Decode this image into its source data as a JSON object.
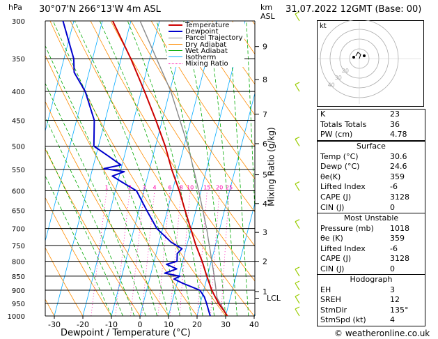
{
  "header": {
    "hpa_unit": "hPa",
    "location": "30°07'N  266°13'W  4m  ASL",
    "km_unit": "km",
    "asl_unit": "ASL",
    "datetime": "31.07.2022  12GMT  (Base: 00)"
  },
  "chart_data": {
    "type": "skew-t log-p",
    "xlabel": "Dewpoint / Temperature (°C)",
    "ylabel_left": "hPa",
    "ylabel_right": "Mixing Ratio (g/kg)",
    "pressure_levels": [
      300,
      350,
      400,
      450,
      500,
      550,
      600,
      650,
      700,
      750,
      800,
      850,
      900,
      950,
      1000
    ],
    "temperature_ticks": [
      -30,
      -20,
      -10,
      0,
      10,
      20,
      30,
      40
    ],
    "altitude_km": [
      {
        "label": "1",
        "p": 905
      },
      {
        "label": "2",
        "p": 800
      },
      {
        "label": "3",
        "p": 711
      },
      {
        "label": "4",
        "p": 632
      },
      {
        "label": "5",
        "p": 562
      },
      {
        "label": "6",
        "p": 495
      },
      {
        "label": "7",
        "p": 439
      },
      {
        "label": "8",
        "p": 381
      },
      {
        "label": "9",
        "p": 333
      }
    ],
    "lcl": {
      "label": "LCL",
      "p": 930
    },
    "mixing_ratio_labels": [
      "1",
      "2",
      "3",
      "4",
      "6",
      "8",
      "10",
      "15",
      "20",
      "25"
    ],
    "mixing_ratio_values": [
      1,
      2,
      3,
      4,
      6,
      8,
      10,
      15,
      20,
      25
    ],
    "legend": [
      "Temperature",
      "Dewpoint",
      "Parcel Trajectory",
      "Dry Adiabat",
      "Wet Adiabat",
      "Isotherm",
      "Mixing Ratio"
    ],
    "temperature_profile": [
      {
        "p": 1000,
        "t": 30.6
      },
      {
        "p": 975,
        "t": 28.6
      },
      {
        "p": 950,
        "t": 26.4
      },
      {
        "p": 925,
        "t": 24.6
      },
      {
        "p": 900,
        "t": 22.8
      },
      {
        "p": 850,
        "t": 19.8
      },
      {
        "p": 800,
        "t": 16.8
      },
      {
        "p": 750,
        "t": 13.2
      },
      {
        "p": 700,
        "t": 9.8
      },
      {
        "p": 650,
        "t": 6.2
      },
      {
        "p": 600,
        "t": 2.4
      },
      {
        "p": 550,
        "t": -2.2
      },
      {
        "p": 500,
        "t": -6.6
      },
      {
        "p": 450,
        "t": -12.2
      },
      {
        "p": 400,
        "t": -18.8
      },
      {
        "p": 350,
        "t": -26.6
      },
      {
        "p": 300,
        "t": -36.4
      }
    ],
    "dewpoint_profile": [
      {
        "p": 1000,
        "t": 24.6
      },
      {
        "p": 975,
        "t": 23.4
      },
      {
        "p": 950,
        "t": 22.2
      },
      {
        "p": 925,
        "t": 20.8
      },
      {
        "p": 900,
        "t": 18.6
      },
      {
        "p": 875,
        "t": 12.0
      },
      {
        "p": 860,
        "t": 8.6
      },
      {
        "p": 850,
        "t": 10.4
      },
      {
        "p": 840,
        "t": 4.8
      },
      {
        "p": 825,
        "t": 8.6
      },
      {
        "p": 810,
        "t": 4.6
      },
      {
        "p": 800,
        "t": 8.0
      },
      {
        "p": 775,
        "t": 7.4
      },
      {
        "p": 760,
        "t": 8.6
      },
      {
        "p": 740,
        "t": 4.2
      },
      {
        "p": 700,
        "t": -2.0
      },
      {
        "p": 650,
        "t": -7.2
      },
      {
        "p": 600,
        "t": -12.6
      },
      {
        "p": 580,
        "t": -18.2
      },
      {
        "p": 565,
        "t": -22.4
      },
      {
        "p": 555,
        "t": -18.6
      },
      {
        "p": 548,
        "t": -26.0
      },
      {
        "p": 540,
        "t": -20.4
      },
      {
        "p": 520,
        "t": -25.8
      },
      {
        "p": 500,
        "t": -31.6
      },
      {
        "p": 450,
        "t": -33.8
      },
      {
        "p": 400,
        "t": -39.6
      },
      {
        "p": 370,
        "t": -45.2
      },
      {
        "p": 350,
        "t": -46.6
      },
      {
        "p": 300,
        "t": -53.8
      }
    ],
    "parcel_profile": [
      {
        "p": 1000,
        "t": 30.6
      },
      {
        "p": 930,
        "t": 25.4
      },
      {
        "p": 850,
        "t": 22.4
      },
      {
        "p": 700,
        "t": 15.4
      },
      {
        "p": 600,
        "t": 9.2
      },
      {
        "p": 500,
        "t": 1.4
      },
      {
        "p": 400,
        "t": -9.6
      },
      {
        "p": 300,
        "t": -26.8
      }
    ],
    "hodograph": {
      "rings": [
        "10",
        "20",
        "30",
        "40"
      ],
      "unit": "kt",
      "storm_dir": 135,
      "storm_spd": 4
    }
  },
  "indices": {
    "k": {
      "label": "K",
      "value": "23"
    },
    "tt": {
      "label": "Totals Totals",
      "value": "36"
    },
    "pw": {
      "label": "PW (cm)",
      "value": "4.78"
    }
  },
  "surface": {
    "title": "Surface",
    "rows": [
      {
        "label": "Temp (°C)",
        "value": "30.6"
      },
      {
        "label": "Dewp (°C)",
        "value": "24.6"
      },
      {
        "label": "θe(K)",
        "value": "359"
      },
      {
        "label": "Lifted Index",
        "value": "-6"
      },
      {
        "label": "CAPE (J)",
        "value": "3128"
      },
      {
        "label": "CIN (J)",
        "value": "0"
      }
    ]
  },
  "most_unstable": {
    "title": "Most Unstable",
    "rows": [
      {
        "label": "Pressure (mb)",
        "value": "1018"
      },
      {
        "label": "θe (K)",
        "value": "359"
      },
      {
        "label": "Lifted Index",
        "value": "-6"
      },
      {
        "label": "CAPE (J)",
        "value": "3128"
      },
      {
        "label": "CIN (J)",
        "value": "0"
      }
    ]
  },
  "hodograph_box": {
    "title": "Hodograph",
    "rows": [
      {
        "label": "EH",
        "value": "3"
      },
      {
        "label": "SREH",
        "value": "12"
      },
      {
        "label": "StmDir",
        "value": "135°"
      },
      {
        "label": "StmSpd (kt)",
        "value": "4"
      }
    ]
  },
  "footer": {
    "copyright": "© weatheronline.co.uk"
  },
  "colors": {
    "temperature": "#cc0000",
    "dewpoint": "#0000cc",
    "parcel": "#888888",
    "dry_adiabat": "#ff8c00",
    "wet_adiabat": "#00aa00",
    "isotherm": "#00aaff",
    "mixing_ratio": "#ff00aa",
    "wind": "#99cc00"
  }
}
